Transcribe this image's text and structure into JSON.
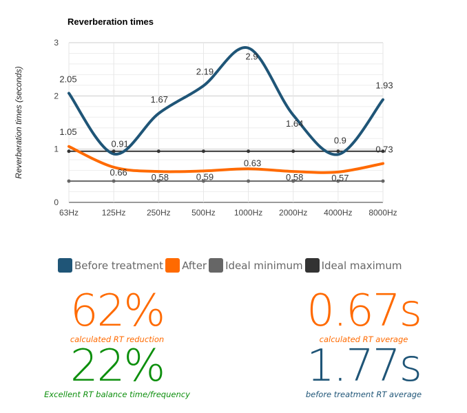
{
  "chart_data": {
    "type": "line",
    "title": "Reverberation times",
    "ylabel": "Reverberation times (seconds)",
    "xlabel": "",
    "categories": [
      "63Hz",
      "125Hz",
      "250Hz",
      "500Hz",
      "1000Hz",
      "2000Hz",
      "4000Hz",
      "8000Hz"
    ],
    "ylim": [
      0,
      3
    ],
    "yticks": [
      0,
      1,
      2,
      3
    ],
    "series": [
      {
        "name": "Before treatment",
        "values": [
          2.05,
          0.91,
          1.67,
          2.19,
          2.9,
          1.64,
          0.9,
          1.93
        ],
        "color": "#1f5577",
        "labels": true
      },
      {
        "name": "After",
        "values": [
          1.05,
          0.66,
          0.58,
          0.59,
          0.63,
          0.58,
          0.57,
          0.73
        ],
        "color": "#ff6a00",
        "labels": true
      },
      {
        "name": "Ideal minimum",
        "values": [
          0.4,
          0.4,
          0.4,
          0.4,
          0.4,
          0.4,
          0.4,
          0.4
        ],
        "color": "#666666",
        "labels": false
      },
      {
        "name": "Ideal maximum",
        "values": [
          0.96,
          0.96,
          0.96,
          0.96,
          0.96,
          0.96,
          0.96,
          0.96
        ],
        "color": "#333333",
        "labels": false
      }
    ]
  },
  "legend": [
    {
      "label": "Before treatment",
      "color": "#1f5577"
    },
    {
      "label": "After",
      "color": "#ff6a00"
    },
    {
      "label": "Ideal minimum",
      "color": "#666666"
    },
    {
      "label": "Ideal maximum",
      "color": "#333333"
    }
  ],
  "stats": {
    "reduction": {
      "value": "62%",
      "caption": "calculated RT reduction",
      "color": "#ff6a00"
    },
    "after_avg": {
      "value": "0.67s",
      "caption": "calculated RT average",
      "color": "#ff6a00"
    },
    "balance": {
      "value": "22%",
      "caption": "Excellent RT balance time/frequency",
      "color": "#0d8f0d"
    },
    "before_avg": {
      "value": "1.77s",
      "caption": "before treatment RT average",
      "color": "#1f5577"
    }
  }
}
